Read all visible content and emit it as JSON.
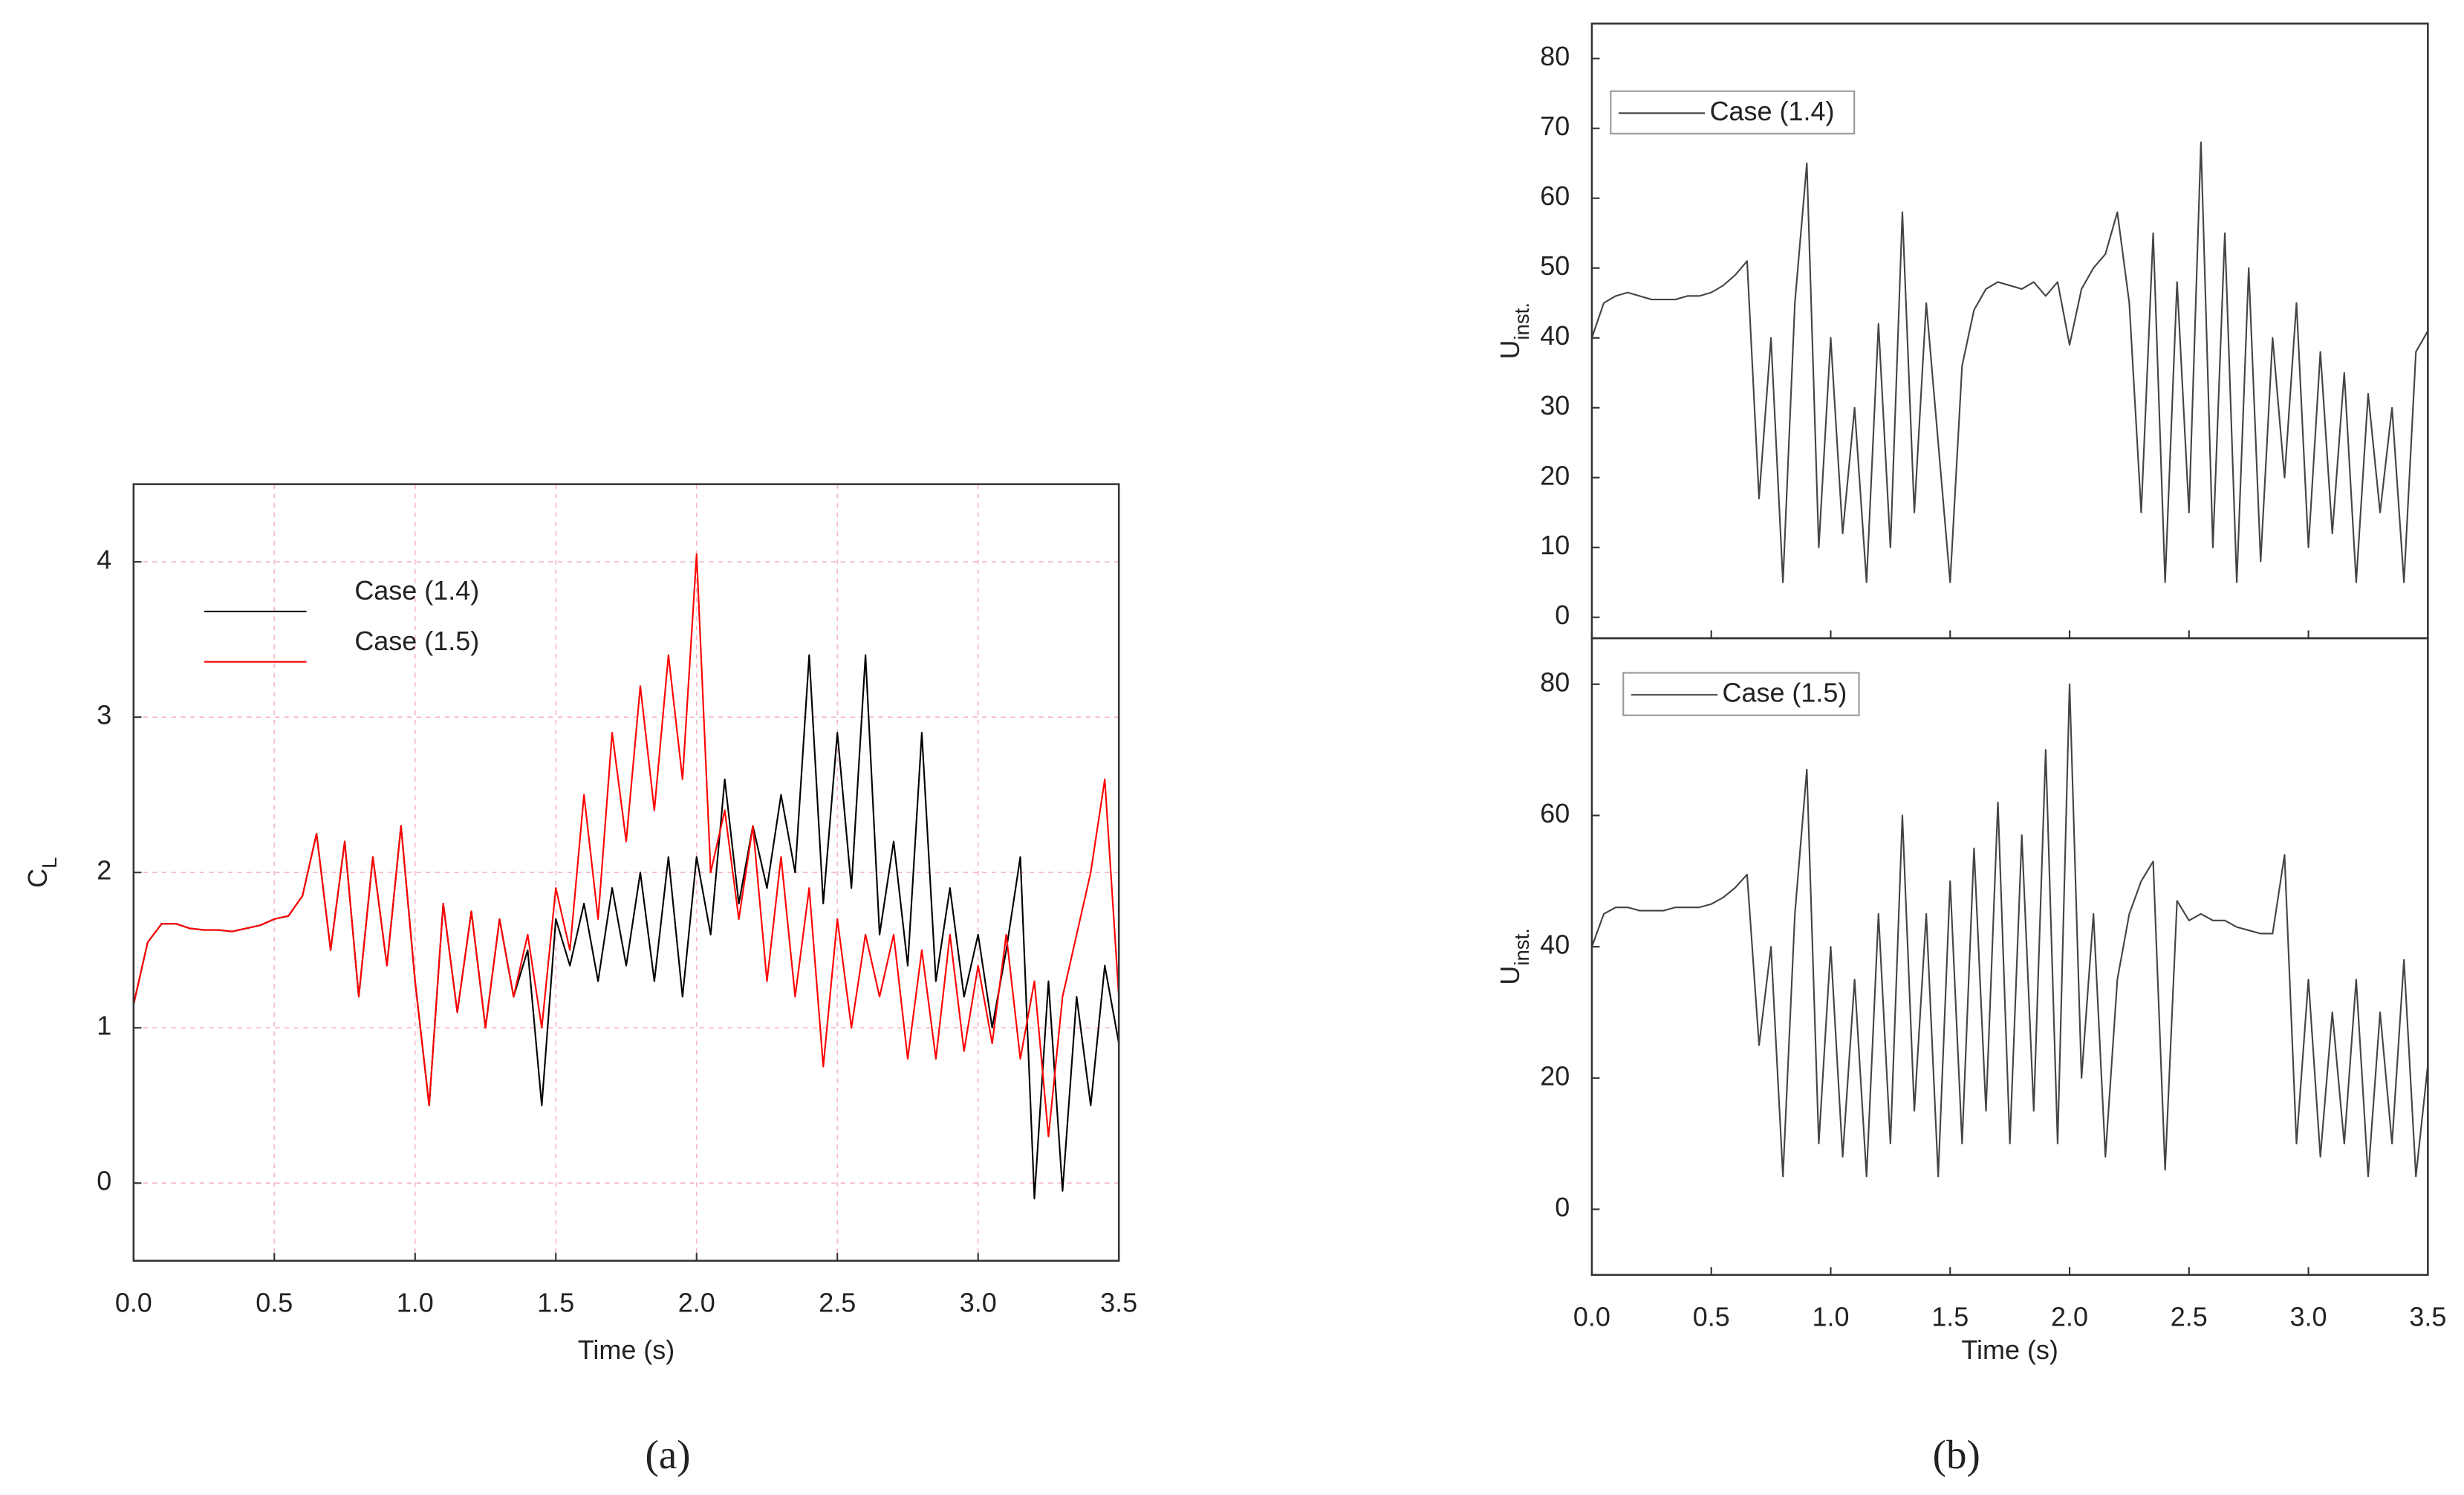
{
  "chart_data": [
    {
      "type": "line",
      "caption": "(a)",
      "x_label": "Time (s)",
      "y_label": "C",
      "y_label_subscript": "L",
      "x": [
        0,
        0.05,
        0.1,
        0.15,
        0.2,
        0.25,
        0.3,
        0.35,
        0.4,
        0.45,
        0.5,
        0.55,
        0.6,
        0.65,
        0.7,
        0.75,
        0.8,
        0.85,
        0.9,
        0.95,
        1.0,
        1.05,
        1.1,
        1.15,
        1.2,
        1.25,
        1.3,
        1.35,
        1.4,
        1.45,
        1.5,
        1.55,
        1.6,
        1.65,
        1.7,
        1.75,
        1.8,
        1.85,
        1.9,
        1.95,
        2.0,
        2.05,
        2.1,
        2.15,
        2.2,
        2.25,
        2.3,
        2.35,
        2.4,
        2.45,
        2.5,
        2.55,
        2.6,
        2.65,
        2.7,
        2.75,
        2.8,
        2.85,
        2.9,
        2.95,
        3.0,
        3.05,
        3.1,
        3.15,
        3.2,
        3.25,
        3.3,
        3.35,
        3.4,
        3.45,
        3.5
      ],
      "xlim": [
        0,
        3.5
      ],
      "ylim": [
        -0.5,
        4.5
      ],
      "xticks": [
        {
          "value": 0,
          "label": "0.0"
        },
        0.5,
        {
          "value": 1,
          "label": "1.0"
        },
        1.5,
        {
          "value": 2,
          "label": "2.0"
        },
        2.5,
        {
          "value": 3,
          "label": "3.0"
        },
        3.5
      ],
      "yticks": [
        0,
        1,
        2,
        3,
        4
      ],
      "grid": true,
      "series": [
        {
          "name": "Case (1.4)",
          "color": "#000000",
          "values": [
            1.15,
            1.55,
            1.67,
            1.67,
            1.64,
            1.63,
            1.63,
            1.62,
            1.64,
            1.66,
            1.7,
            1.72,
            1.85,
            2.25,
            1.5,
            2.2,
            1.2,
            2.1,
            1.4,
            2.3,
            1.3,
            0.5,
            1.8,
            1.1,
            1.75,
            1.0,
            1.7,
            1.2,
            1.5,
            0.5,
            1.7,
            1.4,
            1.8,
            1.3,
            1.9,
            1.4,
            2.0,
            1.3,
            2.1,
            1.2,
            2.1,
            1.6,
            2.6,
            1.8,
            2.3,
            1.9,
            2.5,
            2.0,
            3.4,
            1.8,
            2.9,
            1.9,
            3.4,
            1.6,
            2.2,
            1.4,
            2.9,
            1.3,
            1.9,
            1.2,
            1.6,
            1.0,
            1.5,
            2.1,
            -0.1,
            1.3,
            -0.05,
            1.2,
            0.5,
            1.4,
            0.9
          ]
        },
        {
          "name": "Case (1.5)",
          "color": "#ff0000",
          "values": [
            1.15,
            1.55,
            1.67,
            1.67,
            1.64,
            1.63,
            1.63,
            1.62,
            1.64,
            1.66,
            1.7,
            1.72,
            1.85,
            2.25,
            1.5,
            2.2,
            1.2,
            2.1,
            1.4,
            2.3,
            1.3,
            0.5,
            1.8,
            1.1,
            1.75,
            1.0,
            1.7,
            1.2,
            1.6,
            1.0,
            1.9,
            1.5,
            2.5,
            1.7,
            2.9,
            2.2,
            3.2,
            2.4,
            3.4,
            2.6,
            4.05,
            2.0,
            2.4,
            1.7,
            2.3,
            1.3,
            2.1,
            1.2,
            1.9,
            0.75,
            1.7,
            1.0,
            1.6,
            1.2,
            1.6,
            0.8,
            1.5,
            0.8,
            1.6,
            0.85,
            1.4,
            0.9,
            1.6,
            0.8,
            1.3,
            0.3,
            1.2,
            1.6,
            2.0,
            2.6,
            1.2
          ]
        }
      ]
    },
    {
      "type": "line",
      "caption": "(b)",
      "y_label": "U",
      "y_label_subscript": "inst.",
      "x": [
        0,
        0.05,
        0.1,
        0.15,
        0.2,
        0.25,
        0.3,
        0.35,
        0.4,
        0.45,
        0.5,
        0.55,
        0.6,
        0.65,
        0.7,
        0.75,
        0.8,
        0.85,
        0.9,
        0.95,
        1.0,
        1.05,
        1.1,
        1.15,
        1.2,
        1.25,
        1.3,
        1.35,
        1.4,
        1.45,
        1.5,
        1.55,
        1.6,
        1.65,
        1.7,
        1.75,
        1.8,
        1.85,
        1.9,
        1.95,
        2.0,
        2.05,
        2.1,
        2.15,
        2.2,
        2.25,
        2.3,
        2.35,
        2.4,
        2.45,
        2.5,
        2.55,
        2.6,
        2.65,
        2.7,
        2.75,
        2.8,
        2.85,
        2.9,
        2.95,
        3.0,
        3.05,
        3.1,
        3.15,
        3.2,
        3.25,
        3.3,
        3.35,
        3.4,
        3.45,
        3.5
      ],
      "xlim": [
        0,
        3.5
      ],
      "ylim": [
        -3,
        85
      ],
      "xticks": [
        {
          "value": 0,
          "label": "0.0"
        },
        0.5,
        {
          "value": 1,
          "label": "1.0"
        },
        1.5,
        {
          "value": 2,
          "label": "2.0"
        },
        2.5,
        {
          "value": 3,
          "label": "3.0"
        },
        3.5
      ],
      "yticks": [
        0,
        10,
        20,
        30,
        40,
        50,
        60,
        70,
        80
      ],
      "series": [
        {
          "name": "Case (1.4)",
          "color": "#444444",
          "values": [
            40,
            45,
            46,
            46.5,
            46,
            45.5,
            45.5,
            45.5,
            46,
            46,
            46.5,
            47.5,
            49,
            51,
            17,
            40,
            5,
            45,
            65,
            10,
            40,
            12,
            30,
            5,
            42,
            10,
            58,
            15,
            45,
            25,
            5,
            36,
            44,
            47,
            48,
            47.5,
            47,
            48,
            46,
            48,
            39,
            47,
            50,
            52,
            58,
            45,
            15,
            55,
            5,
            48,
            15,
            68,
            10,
            55,
            5,
            50,
            8,
            40,
            20,
            45,
            10,
            38,
            12,
            35,
            5,
            32,
            15,
            30,
            5,
            38,
            41
          ]
        }
      ]
    },
    {
      "type": "line",
      "x_label": "Time (s)",
      "y_label": "U",
      "y_label_subscript": "inst.",
      "x": [
        0,
        0.05,
        0.1,
        0.15,
        0.2,
        0.25,
        0.3,
        0.35,
        0.4,
        0.45,
        0.5,
        0.55,
        0.6,
        0.65,
        0.7,
        0.75,
        0.8,
        0.85,
        0.9,
        0.95,
        1.0,
        1.05,
        1.1,
        1.15,
        1.2,
        1.25,
        1.3,
        1.35,
        1.4,
        1.45,
        1.5,
        1.55,
        1.6,
        1.65,
        1.7,
        1.75,
        1.8,
        1.85,
        1.9,
        1.95,
        2.0,
        2.05,
        2.1,
        2.15,
        2.2,
        2.25,
        2.3,
        2.35,
        2.4,
        2.45,
        2.5,
        2.55,
        2.6,
        2.65,
        2.7,
        2.75,
        2.8,
        2.85,
        2.9,
        2.95,
        3.0,
        3.05,
        3.1,
        3.15,
        3.2,
        3.25,
        3.3,
        3.35,
        3.4,
        3.45,
        3.5
      ],
      "xlim": [
        0,
        3.5
      ],
      "ylim": [
        -10,
        87
      ],
      "xticks": [
        {
          "value": 0,
          "label": "0.0"
        },
        0.5,
        {
          "value": 1,
          "label": "1.0"
        },
        1.5,
        {
          "value": 2,
          "label": "2.0"
        },
        2.5,
        {
          "value": 3,
          "label": "3.0"
        },
        3.5
      ],
      "yticks": [
        0,
        20,
        40,
        60,
        80
      ],
      "series": [
        {
          "name": "Case (1.5)",
          "color": "#444444",
          "values": [
            40,
            45,
            46,
            46,
            45.5,
            45.5,
            45.5,
            46,
            46,
            46,
            46.5,
            47.5,
            49,
            51,
            25,
            40,
            5,
            45,
            67,
            10,
            40,
            8,
            35,
            5,
            45,
            10,
            60,
            15,
            45,
            5,
            50,
            10,
            55,
            15,
            62,
            10,
            57,
            15,
            70,
            10,
            80,
            20,
            45,
            8,
            35,
            45,
            50,
            53,
            6,
            47,
            44,
            45,
            44,
            44,
            43,
            42.5,
            42,
            42,
            54,
            10,
            35,
            8,
            30,
            10,
            35,
            5,
            30,
            10,
            38,
            5,
            22
          ]
        }
      ]
    }
  ]
}
